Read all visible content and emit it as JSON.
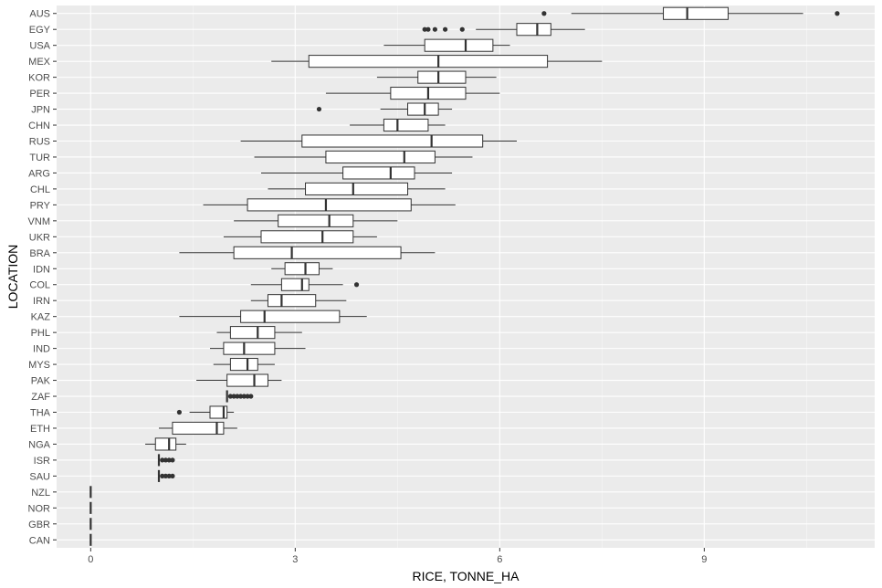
{
  "chart_data": {
    "type": "boxplot",
    "orientation": "horizontal",
    "xlabel": "RICE, TONNE_HA",
    "ylabel": "LOCATION",
    "xlim": [
      -0.5,
      11.5
    ],
    "xticks": [
      0,
      3,
      6,
      9
    ],
    "grid": true,
    "colors": {
      "panel_bg": "#ebebeb",
      "grid_major": "#ffffff",
      "box_fill": "#ffffff",
      "box_stroke": "#333333",
      "tick_text": "#4d4d4d"
    },
    "categories": [
      "AUS",
      "EGY",
      "USA",
      "MEX",
      "KOR",
      "PER",
      "JPN",
      "CHN",
      "RUS",
      "TUR",
      "ARG",
      "CHL",
      "PRY",
      "VNM",
      "UKR",
      "BRA",
      "IDN",
      "COL",
      "IRN",
      "KAZ",
      "PHL",
      "IND",
      "MYS",
      "PAK",
      "ZAF",
      "THA",
      "ETH",
      "NGA",
      "ISR",
      "SAU",
      "NZL",
      "NOR",
      "GBR",
      "CAN"
    ],
    "boxes": [
      {
        "label": "AUS",
        "min": 7.05,
        "q1": 8.4,
        "median": 8.75,
        "q3": 9.35,
        "max": 10.45,
        "outliers": [
          6.65,
          10.95
        ]
      },
      {
        "label": "EGY",
        "min": 5.65,
        "q1": 6.25,
        "median": 6.55,
        "q3": 6.75,
        "max": 7.25,
        "outliers": [
          4.9,
          4.95,
          5.05,
          5.2,
          5.45
        ]
      },
      {
        "label": "USA",
        "min": 4.3,
        "q1": 4.9,
        "median": 5.5,
        "q3": 5.9,
        "max": 6.15,
        "outliers": []
      },
      {
        "label": "MEX",
        "min": 2.65,
        "q1": 3.2,
        "median": 5.1,
        "q3": 6.7,
        "max": 7.5,
        "outliers": []
      },
      {
        "label": "KOR",
        "min": 4.2,
        "q1": 4.8,
        "median": 5.1,
        "q3": 5.5,
        "max": 5.95,
        "outliers": []
      },
      {
        "label": "PER",
        "min": 3.45,
        "q1": 4.4,
        "median": 4.95,
        "q3": 5.5,
        "max": 6.0,
        "outliers": []
      },
      {
        "label": "JPN",
        "min": 4.25,
        "q1": 4.65,
        "median": 4.9,
        "q3": 5.1,
        "max": 5.3,
        "outliers": [
          3.35
        ]
      },
      {
        "label": "CHN",
        "min": 3.8,
        "q1": 4.3,
        "median": 4.5,
        "q3": 4.95,
        "max": 5.2,
        "outliers": []
      },
      {
        "label": "RUS",
        "min": 2.2,
        "q1": 3.1,
        "median": 5.0,
        "q3": 5.75,
        "max": 6.25,
        "outliers": []
      },
      {
        "label": "TUR",
        "min": 2.4,
        "q1": 3.45,
        "median": 4.6,
        "q3": 5.05,
        "max": 5.6,
        "outliers": []
      },
      {
        "label": "ARG",
        "min": 2.5,
        "q1": 3.7,
        "median": 4.4,
        "q3": 4.75,
        "max": 5.3,
        "outliers": []
      },
      {
        "label": "CHL",
        "min": 2.6,
        "q1": 3.15,
        "median": 3.85,
        "q3": 4.65,
        "max": 5.2,
        "outliers": []
      },
      {
        "label": "PRY",
        "min": 1.65,
        "q1": 2.3,
        "median": 3.45,
        "q3": 4.7,
        "max": 5.35,
        "outliers": []
      },
      {
        "label": "VNM",
        "min": 2.1,
        "q1": 2.75,
        "median": 3.5,
        "q3": 3.85,
        "max": 4.5,
        "outliers": []
      },
      {
        "label": "UKR",
        "min": 1.95,
        "q1": 2.5,
        "median": 3.4,
        "q3": 3.85,
        "max": 4.2,
        "outliers": []
      },
      {
        "label": "BRA",
        "min": 1.3,
        "q1": 2.1,
        "median": 2.95,
        "q3": 4.55,
        "max": 5.05,
        "outliers": []
      },
      {
        "label": "IDN",
        "min": 2.65,
        "q1": 2.85,
        "median": 3.15,
        "q3": 3.35,
        "max": 3.55,
        "outliers": []
      },
      {
        "label": "COL",
        "min": 2.35,
        "q1": 2.8,
        "median": 3.1,
        "q3": 3.2,
        "max": 3.7,
        "outliers": [
          3.9
        ]
      },
      {
        "label": "IRN",
        "min": 2.35,
        "q1": 2.6,
        "median": 2.8,
        "q3": 3.3,
        "max": 3.75,
        "outliers": []
      },
      {
        "label": "KAZ",
        "min": 1.3,
        "q1": 2.2,
        "median": 2.55,
        "q3": 3.65,
        "max": 4.05,
        "outliers": []
      },
      {
        "label": "PHL",
        "min": 1.85,
        "q1": 2.05,
        "median": 2.45,
        "q3": 2.7,
        "max": 3.1,
        "outliers": []
      },
      {
        "label": "IND",
        "min": 1.75,
        "q1": 1.95,
        "median": 2.25,
        "q3": 2.7,
        "max": 3.15,
        "outliers": []
      },
      {
        "label": "MYS",
        "min": 1.8,
        "q1": 2.05,
        "median": 2.3,
        "q3": 2.45,
        "max": 2.7,
        "outliers": []
      },
      {
        "label": "PAK",
        "min": 1.55,
        "q1": 2.0,
        "median": 2.4,
        "q3": 2.6,
        "max": 2.8,
        "outliers": []
      },
      {
        "label": "ZAF",
        "min": 2.0,
        "q1": 2.0,
        "median": 2.0,
        "q3": 2.0,
        "max": 2.0,
        "outliers": [
          2.05,
          2.1,
          2.15,
          2.2,
          2.25,
          2.3,
          2.35
        ]
      },
      {
        "label": "THA",
        "min": 1.45,
        "q1": 1.75,
        "median": 1.95,
        "q3": 2.0,
        "max": 2.1,
        "outliers": [
          1.3
        ]
      },
      {
        "label": "ETH",
        "min": 1.0,
        "q1": 1.2,
        "median": 1.85,
        "q3": 1.95,
        "max": 2.15,
        "outliers": []
      },
      {
        "label": "NGA",
        "min": 0.8,
        "q1": 0.95,
        "median": 1.15,
        "q3": 1.25,
        "max": 1.4,
        "outliers": []
      },
      {
        "label": "ISR",
        "min": 1.0,
        "q1": 1.0,
        "median": 1.0,
        "q3": 1.0,
        "max": 1.0,
        "outliers": [
          1.05,
          1.1,
          1.15,
          1.2
        ]
      },
      {
        "label": "SAU",
        "min": 1.0,
        "q1": 1.0,
        "median": 1.0,
        "q3": 1.0,
        "max": 1.0,
        "outliers": [
          1.05,
          1.1,
          1.15,
          1.2
        ]
      },
      {
        "label": "NZL",
        "min": 0,
        "q1": 0,
        "median": 0,
        "q3": 0,
        "max": 0,
        "outliers": []
      },
      {
        "label": "NOR",
        "min": 0,
        "q1": 0,
        "median": 0,
        "q3": 0,
        "max": 0,
        "outliers": []
      },
      {
        "label": "GBR",
        "min": 0,
        "q1": 0,
        "median": 0,
        "q3": 0,
        "max": 0,
        "outliers": []
      },
      {
        "label": "CAN",
        "min": 0,
        "q1": 0,
        "median": 0,
        "q3": 0,
        "max": 0,
        "outliers": []
      }
    ]
  }
}
